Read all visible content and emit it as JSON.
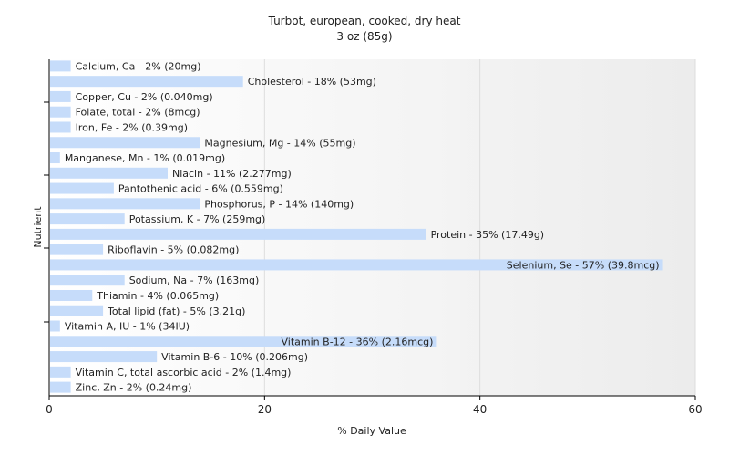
{
  "chart_data": {
    "type": "bar",
    "orientation": "horizontal",
    "title": "Turbot, european, cooked, dry heat",
    "subtitle": "3 oz (85g)",
    "xlabel": "% Daily Value",
    "ylabel": "Nutrient",
    "xlim": [
      0,
      60
    ],
    "xticks": [
      0,
      20,
      40,
      60
    ],
    "grid": true,
    "bar_color": "#c6dcfa",
    "bars": [
      {
        "label": "Calcium, Ca - 2% (20mg)",
        "value": 2
      },
      {
        "label": "Cholesterol - 18% (53mg)",
        "value": 18
      },
      {
        "label": "Copper, Cu - 2% (0.040mg)",
        "value": 2
      },
      {
        "label": "Folate, total - 2% (8mcg)",
        "value": 2
      },
      {
        "label": "Iron, Fe - 2% (0.39mg)",
        "value": 2
      },
      {
        "label": "Magnesium, Mg - 14% (55mg)",
        "value": 14
      },
      {
        "label": "Manganese, Mn - 1% (0.019mg)",
        "value": 1
      },
      {
        "label": "Niacin - 11% (2.277mg)",
        "value": 11
      },
      {
        "label": "Pantothenic acid - 6% (0.559mg)",
        "value": 6
      },
      {
        "label": "Phosphorus, P - 14% (140mg)",
        "value": 14
      },
      {
        "label": "Potassium, K - 7% (259mg)",
        "value": 7
      },
      {
        "label": "Protein - 35% (17.49g)",
        "value": 35
      },
      {
        "label": "Riboflavin - 5% (0.082mg)",
        "value": 5
      },
      {
        "label": "Selenium, Se - 57% (39.8mcg)",
        "value": 57
      },
      {
        "label": "Sodium, Na - 7% (163mg)",
        "value": 7
      },
      {
        "label": "Thiamin - 4% (0.065mg)",
        "value": 4
      },
      {
        "label": "Total lipid (fat) - 5% (3.21g)",
        "value": 5
      },
      {
        "label": "Vitamin A, IU - 1% (34IU)",
        "value": 1
      },
      {
        "label": "Vitamin B-12 - 36% (2.16mcg)",
        "value": 36
      },
      {
        "label": "Vitamin B-6 - 10% (0.206mg)",
        "value": 10
      },
      {
        "label": "Vitamin C, total ascorbic acid - 2% (1.4mg)",
        "value": 2
      },
      {
        "label": "Zinc, Zn - 2% (0.24mg)",
        "value": 2
      }
    ]
  }
}
